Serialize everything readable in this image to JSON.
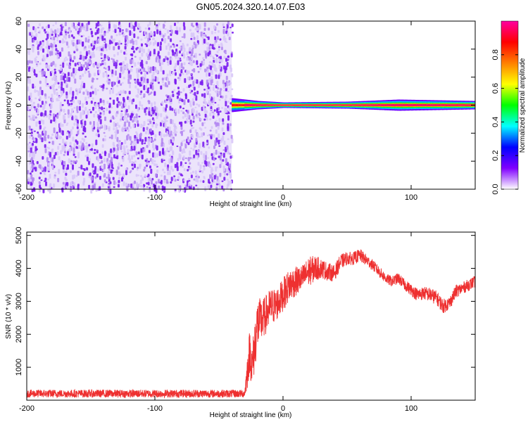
{
  "title": "GN05.2024.320.14.07.E03",
  "chart_data": [
    {
      "type": "heatmap",
      "title": "GN05.2024.320.14.07.E03",
      "xlabel": "Height of straight line (km)",
      "ylabel": "Frequency (Hz)",
      "xlim": [
        -200,
        150
      ],
      "ylim": [
        -60,
        60
      ],
      "x_ticks": [
        -200,
        -100,
        0,
        100
      ],
      "y_ticks": [
        -60,
        -40,
        -20,
        0,
        20,
        40,
        60
      ],
      "noise_region_x": [
        -200,
        -40
      ],
      "noise_amplitude_range": [
        0.0,
        0.3
      ],
      "signal_start_x": -40,
      "signal_center_freq_hz": 0,
      "signal_peak_amplitude": 1.0,
      "signal_bandwidth_profile": [
        {
          "x": -40,
          "halfwidth_hz": 5
        },
        {
          "x": -20,
          "halfwidth_hz": 3
        },
        {
          "x": 0,
          "halfwidth_hz": 2
        },
        {
          "x": 50,
          "halfwidth_hz": 2.5
        },
        {
          "x": 90,
          "halfwidth_hz": 4
        },
        {
          "x": 150,
          "halfwidth_hz": 3
        }
      ],
      "colorbar": {
        "label": "Normalized spectral amplitude",
        "range": [
          0.0,
          1.0
        ],
        "ticks": [
          0.0,
          0.2,
          0.4,
          0.6,
          0.8
        ],
        "colors": [
          "#ffffff",
          "#8000ff",
          "#0000ff",
          "#00ffff",
          "#00ff00",
          "#ffff00",
          "#ff8000",
          "#ff0000",
          "#ff00a0"
        ]
      }
    },
    {
      "type": "line",
      "xlabel": "Height of straight line (km)",
      "ylabel": "SNR (10 * v/v)",
      "xlim": [
        -200,
        150
      ],
      "ylim": [
        0,
        5100
      ],
      "x_ticks": [
        -200,
        -100,
        0,
        100
      ],
      "y_ticks": [
        1000,
        2000,
        3000,
        4000,
        5000
      ],
      "line_color": "#ee3030",
      "series": [
        {
          "x": [
            -200,
            -180,
            -160,
            -140,
            -120,
            -100,
            -80,
            -60,
            -40,
            -30,
            -28,
            -26,
            -24,
            -22,
            -20,
            -15,
            -10,
            -5,
            0,
            5,
            10,
            15,
            20,
            25,
            30,
            35,
            40,
            45,
            50,
            55,
            60,
            65,
            70,
            75,
            80,
            85,
            90,
            95,
            100,
            105,
            110,
            115,
            120,
            125,
            130,
            135,
            140,
            145,
            150
          ],
          "values": [
            200,
            200,
            200,
            200,
            200,
            200,
            200,
            200,
            200,
            200,
            800,
            1500,
            1000,
            1700,
            2300,
            2500,
            2800,
            2900,
            3200,
            3500,
            3600,
            3700,
            3900,
            4000,
            4000,
            3900,
            3850,
            4200,
            4300,
            4300,
            4400,
            4250,
            4100,
            3900,
            3700,
            3600,
            3700,
            3500,
            3350,
            3200,
            3250,
            3200,
            3100,
            2850,
            2950,
            3300,
            3400,
            3500,
            3600
          ],
          "noise": [
            120,
            120,
            120,
            120,
            120,
            120,
            120,
            120,
            120,
            120,
            500,
            700,
            700,
            800,
            800,
            600,
            600,
            500,
            500,
            500,
            450,
            400,
            450,
            400,
            300,
            280,
            250,
            230,
            200,
            200,
            200,
            180,
            170,
            170,
            160,
            160,
            170,
            170,
            180,
            200,
            200,
            220,
            220,
            220,
            200,
            200,
            180,
            180,
            180
          ]
        }
      ]
    }
  ]
}
